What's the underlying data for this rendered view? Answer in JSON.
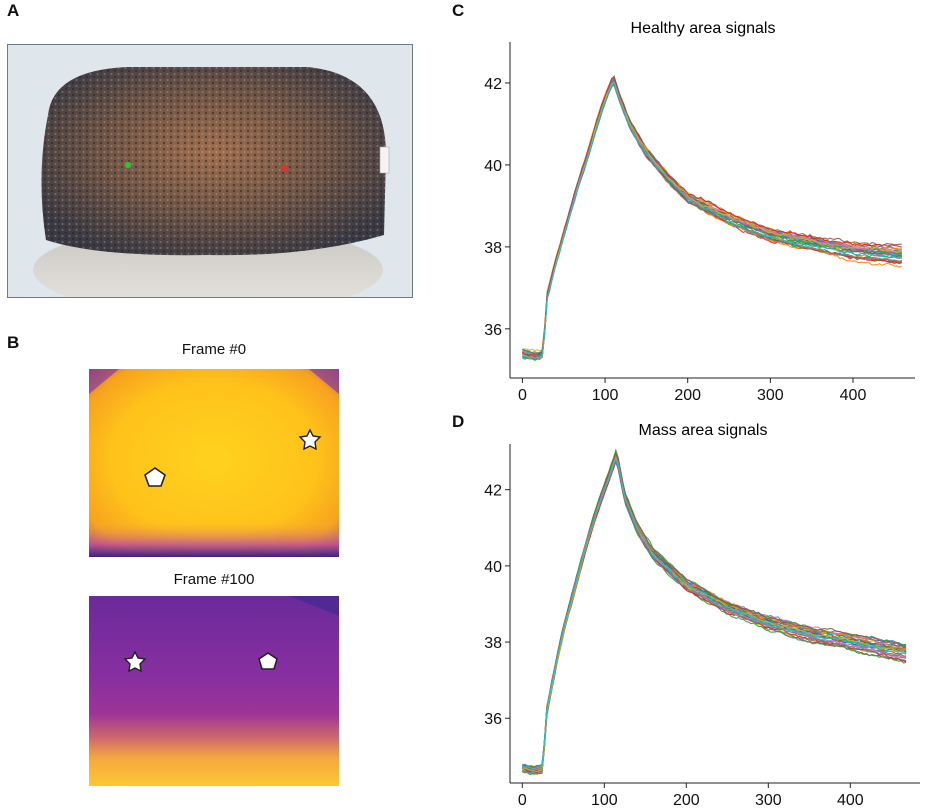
{
  "panels": {
    "a": {
      "letter": "A"
    },
    "b": {
      "letter": "B",
      "frame0_title": "Frame #0",
      "frame100_title": "Frame #100"
    },
    "c": {
      "letter": "C"
    },
    "d": {
      "letter": "D"
    }
  },
  "colors": {
    "photo_skin": "#7a5b45",
    "thermal_hot": "#ffc21a",
    "thermal_cool": "#8a2fa0",
    "marker_green": "#2fbf3a",
    "marker_red": "#e03030"
  },
  "chart_data": [
    {
      "type": "line",
      "title": "Healthy area signals",
      "xlabel": "",
      "ylabel": "",
      "xlim": [
        -15,
        475
      ],
      "ylim": [
        34.8,
        43.0
      ],
      "xticks": [
        0,
        100,
        200,
        300,
        400
      ],
      "yticks": [
        36,
        38,
        40,
        42
      ],
      "xtick_labels": [
        "0",
        "100",
        "200",
        "300",
        "400"
      ],
      "ytick_labels": [
        "36",
        "38",
        "40",
        "42"
      ],
      "n_series": 30,
      "series_colors": [
        "#1f77b4",
        "#ff7f0e",
        "#2ca02c",
        "#d62728",
        "#9467bd",
        "#8c564b",
        "#e377c2",
        "#7f7f7f",
        "#bcbd22",
        "#17becf"
      ],
      "curve": {
        "x": [
          0,
          10,
          20,
          25,
          30,
          40,
          50,
          60,
          70,
          80,
          90,
          100,
          110,
          120,
          130,
          150,
          180,
          200,
          250,
          300,
          350,
          400,
          460
        ],
        "y": [
          35.4,
          35.35,
          35.35,
          35.4,
          36.8,
          37.6,
          38.3,
          39.0,
          39.7,
          40.3,
          41.0,
          41.6,
          42.1,
          41.5,
          41.0,
          40.3,
          39.6,
          39.2,
          38.7,
          38.3,
          38.1,
          37.9,
          37.8
        ]
      }
    },
    {
      "type": "line",
      "title": "Mass area signals",
      "xlabel": "",
      "ylabel": "",
      "xlim": [
        -15,
        485
      ],
      "ylim": [
        34.3,
        43.2
      ],
      "xticks": [
        0,
        100,
        200,
        300,
        400
      ],
      "yticks": [
        36,
        38,
        40,
        42
      ],
      "xtick_labels": [
        "0",
        "100",
        "200",
        "300",
        "400"
      ],
      "ytick_labels": [
        "36",
        "38",
        "40",
        "42"
      ],
      "n_series": 30,
      "series_colors": [
        "#1f77b4",
        "#ff7f0e",
        "#2ca02c",
        "#d62728",
        "#9467bd",
        "#8c564b",
        "#e377c2",
        "#7f7f7f",
        "#bcbd22",
        "#17becf"
      ],
      "curve": {
        "x": [
          0,
          10,
          20,
          25,
          30,
          40,
          50,
          60,
          70,
          80,
          90,
          100,
          110,
          115,
          125,
          140,
          160,
          200,
          250,
          300,
          350,
          400,
          470
        ],
        "y": [
          34.7,
          34.65,
          34.65,
          34.7,
          36.2,
          37.3,
          38.3,
          39.1,
          39.9,
          40.7,
          41.4,
          42.0,
          42.6,
          42.9,
          41.8,
          41.0,
          40.3,
          39.5,
          38.9,
          38.5,
          38.2,
          38.0,
          37.7
        ]
      }
    }
  ]
}
